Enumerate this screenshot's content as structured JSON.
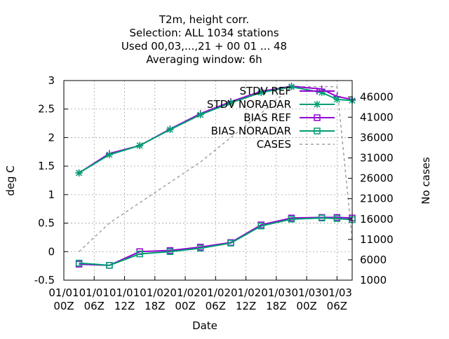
{
  "chart_data": {
    "type": "line",
    "title_lines": [
      "T2m, height corr.",
      "Selection: ALL    1034 stations",
      "Used  00,03,...,21  + 00 01 ... 48",
      "Averaging window:  6h"
    ],
    "xlabel": "Date",
    "ylabel": "deg C",
    "y2label": "No cases",
    "x_ticks": [
      {
        "x": 0,
        "top": "01/01",
        "bottom": "00Z"
      },
      {
        "x": 6,
        "top": "01/01",
        "bottom": "06Z"
      },
      {
        "x": 12,
        "top": "01/01",
        "bottom": "12Z"
      },
      {
        "x": 18,
        "top": "01/02",
        "bottom": "18Z"
      },
      {
        "x": 24,
        "top": "01/02",
        "bottom": "00Z"
      },
      {
        "x": 30,
        "top": "01/02",
        "bottom": "06Z"
      },
      {
        "x": 36,
        "top": "01/02",
        "bottom": "12Z"
      },
      {
        "x": 42,
        "top": "01/03",
        "bottom": "18Z"
      },
      {
        "x": 48,
        "top": "01/03",
        "bottom": "00Z"
      },
      {
        "x": 54,
        "top": "01/03",
        "bottom": "06Z"
      }
    ],
    "xlim": [
      0,
      57
    ],
    "ylim": [
      -0.5,
      3
    ],
    "y_ticks": [
      -0.5,
      0,
      0.5,
      1,
      1.5,
      2,
      2.5,
      3
    ],
    "y2lim": [
      1000,
      50000
    ],
    "y2_ticks": [
      1000,
      6000,
      11000,
      16000,
      21000,
      26000,
      31000,
      36000,
      41000,
      46000
    ],
    "grid": true,
    "legend_position": "top-right",
    "series": [
      {
        "name": "STDV REF",
        "color": "#9400d3",
        "marker": "plus",
        "axis": "left",
        "x": [
          3,
          9,
          15,
          21,
          27,
          33,
          39,
          45,
          51,
          54,
          57
        ],
        "y": [
          1.38,
          1.72,
          1.86,
          2.15,
          2.42,
          2.63,
          2.81,
          2.9,
          2.85,
          2.72,
          2.67
        ]
      },
      {
        "name": "STDV NORADAR",
        "color": "#009e73",
        "marker": "star",
        "axis": "left",
        "x": [
          3,
          9,
          15,
          21,
          27,
          33,
          39,
          45,
          51,
          54,
          57
        ],
        "y": [
          1.38,
          1.7,
          1.86,
          2.14,
          2.4,
          2.61,
          2.79,
          2.89,
          2.79,
          2.67,
          2.65
        ]
      },
      {
        "name": "BIAS REF",
        "color": "#9400d3",
        "marker": "square",
        "axis": "left",
        "x": [
          3,
          9,
          15,
          21,
          27,
          33,
          39,
          45,
          51,
          54,
          57
        ],
        "y": [
          -0.22,
          -0.24,
          0.0,
          0.02,
          0.08,
          0.16,
          0.47,
          0.59,
          0.6,
          0.6,
          0.59
        ]
      },
      {
        "name": "BIAS NORADAR",
        "color": "#009e73",
        "marker": "square",
        "axis": "left",
        "x": [
          3,
          9,
          15,
          21,
          27,
          33,
          39,
          45,
          51,
          54,
          57
        ],
        "y": [
          -0.2,
          -0.24,
          -0.04,
          0.0,
          0.06,
          0.15,
          0.45,
          0.57,
          0.59,
          0.58,
          0.56
        ]
      },
      {
        "name": "CASES",
        "color": "#a0a0a0",
        "dash": "4,4",
        "axis": "right",
        "x": [
          3,
          9,
          15,
          21,
          27,
          33,
          39,
          45,
          51,
          54,
          57
        ],
        "y": [
          8000,
          15000,
          20000,
          25000,
          30000,
          36000,
          42000,
          48500,
          48500,
          48500,
          11000
        ]
      }
    ]
  }
}
